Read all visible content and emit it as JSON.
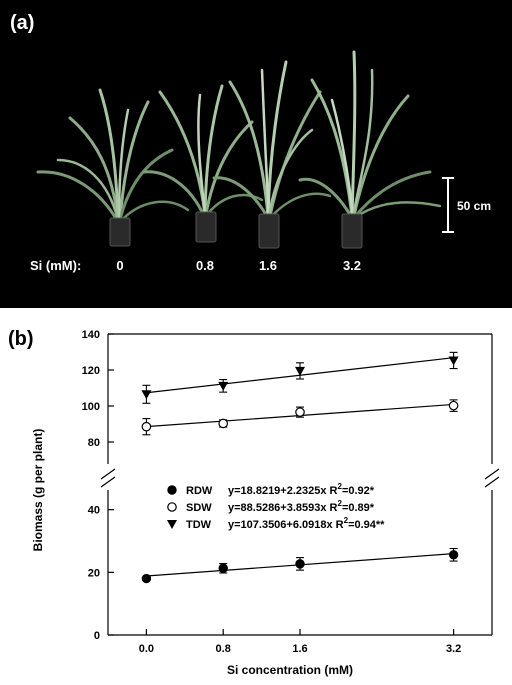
{
  "panel_a": {
    "label": "(a)",
    "scale_bar_label": "50 cm",
    "treatment_label": "Si (mM):",
    "treatments": [
      "0",
      "0.8",
      "1.6",
      "3.2"
    ]
  },
  "panel_b": {
    "label": "(b)"
  },
  "chart_data": {
    "type": "scatter",
    "xlabel": "Si concentration (mM)",
    "ylabel": "Biomass (g per plant)",
    "x": [
      0.0,
      0.8,
      1.6,
      3.2
    ],
    "x_tick_labels": [
      "0.0",
      "0.8",
      "1.6",
      "3.2"
    ],
    "xlim": [
      -0.4,
      3.6
    ],
    "y_axis_break": true,
    "lower_segment": {
      "ylim": [
        0,
        45
      ],
      "ticks": [
        0,
        20,
        40
      ]
    },
    "upper_segment": {
      "ylim": [
        70,
        140
      ],
      "ticks": [
        80,
        100,
        120,
        140
      ]
    },
    "grid": false,
    "legend_placement": "center",
    "series": [
      {
        "name": "RDW",
        "marker": "filled-circle",
        "values": [
          18.0,
          21.3,
          22.7,
          25.6
        ],
        "errors": [
          0.6,
          1.5,
          2.0,
          2.0
        ],
        "fit": {
          "intercept": 18.8219,
          "slope": 2.2325
        },
        "equation": "y=18.8219+2.2325x R",
        "r2_value": "=0.92*"
      },
      {
        "name": "SDW",
        "marker": "open-circle",
        "values": [
          88.5,
          90.3,
          96.6,
          100.2
        ],
        "errors": [
          4.5,
          2.0,
          2.8,
          3.2
        ],
        "fit": {
          "intercept": 88.5286,
          "slope": 3.8593
        },
        "equation": "y=88.5286+3.8593x R",
        "r2_value": "=0.89*"
      },
      {
        "name": "TDW",
        "marker": "filled-triangle-down",
        "values": [
          106.5,
          111.2,
          119.5,
          125.3
        ],
        "errors": [
          5.0,
          3.5,
          4.5,
          4.5
        ],
        "fit": {
          "intercept": 107.3506,
          "slope": 6.0918
        },
        "equation": "y=107.3506+6.0918x R",
        "r2_value": "=0.94**"
      }
    ],
    "superscript": "2"
  }
}
